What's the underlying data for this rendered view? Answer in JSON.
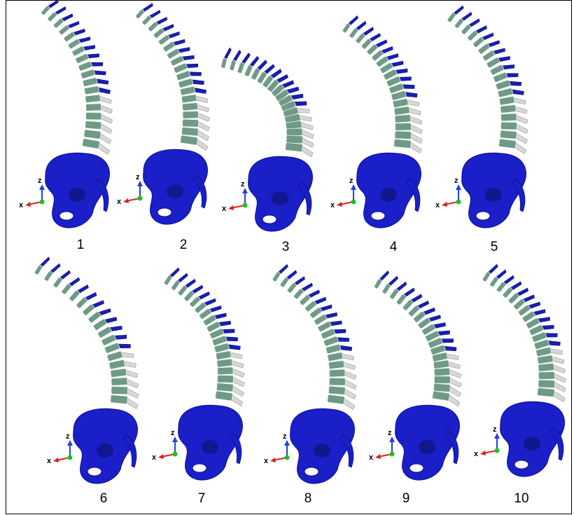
{
  "panels": [
    {
      "label": "1",
      "axes": {
        "x": "x",
        "z": "z"
      }
    },
    {
      "label": "2",
      "axes": {
        "x": "x",
        "z": "z"
      }
    },
    {
      "label": "3",
      "axes": {
        "x": "x",
        "z": "z"
      }
    },
    {
      "label": "4",
      "axes": {
        "x": "x",
        "z": "z"
      }
    },
    {
      "label": "5",
      "axes": {
        "x": "x",
        "z": "z"
      }
    },
    {
      "label": "6",
      "axes": {
        "x": "x",
        "z": "z"
      }
    },
    {
      "label": "7",
      "axes": {
        "x": "x",
        "z": "z"
      }
    },
    {
      "label": "8",
      "axes": {
        "x": "x",
        "z": "z"
      }
    },
    {
      "label": "9",
      "axes": {
        "x": "x",
        "z": "z"
      }
    },
    {
      "label": "10",
      "axes": {
        "x": "x",
        "z": "z"
      }
    }
  ]
}
